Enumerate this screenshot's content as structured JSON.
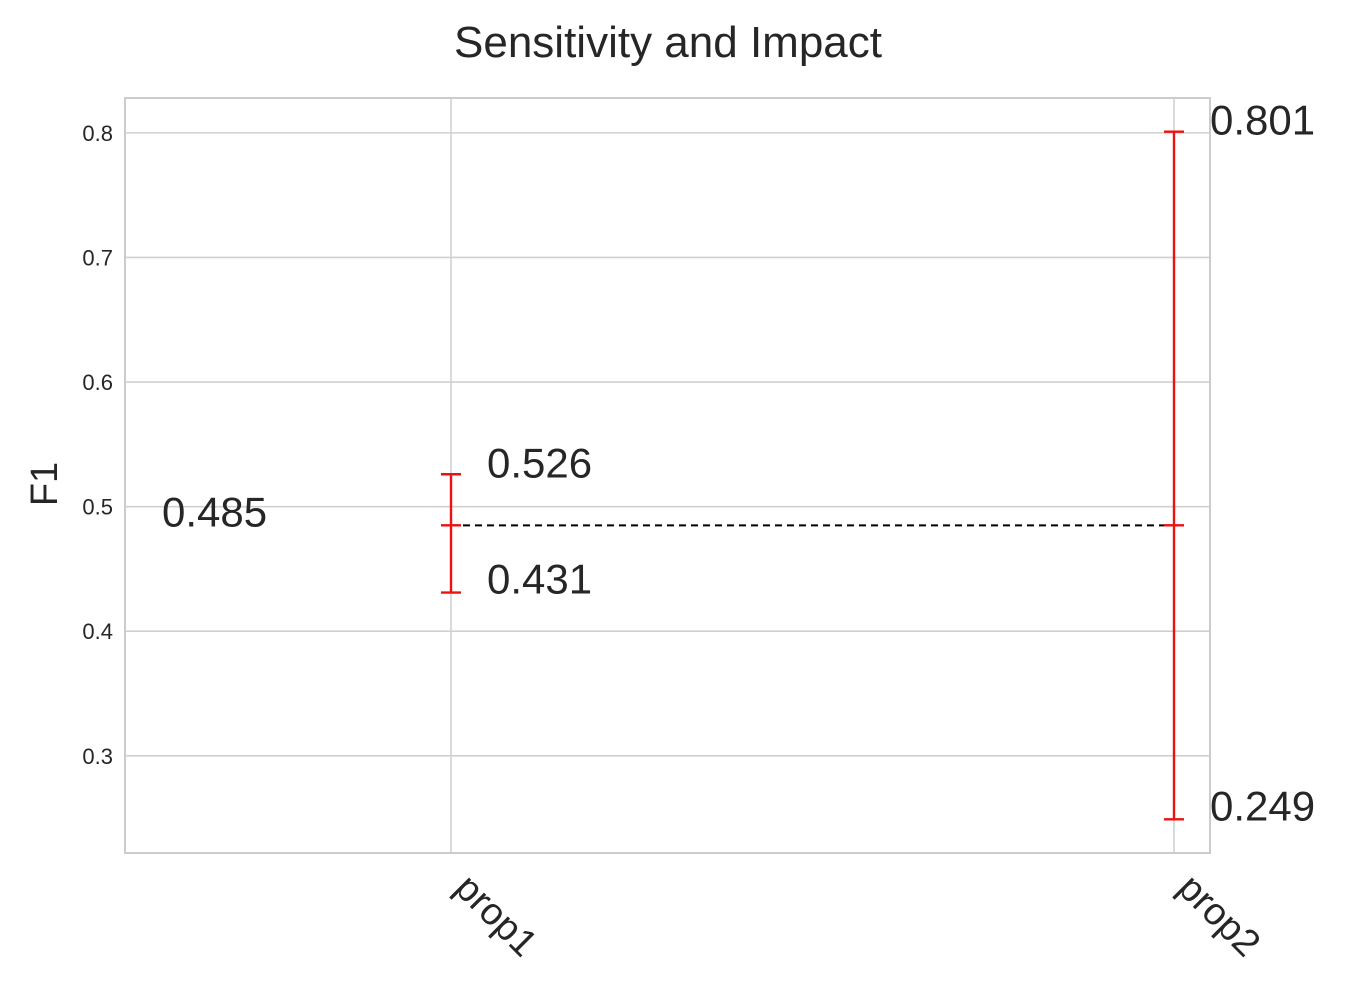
{
  "chart_data": {
    "type": "errorbar",
    "title": "Sensitivity and Impact",
    "ylabel": "F1",
    "xlabel": "",
    "categories": [
      "prop1",
      "prop2"
    ],
    "baseline": 0.485,
    "baseline_label": "0.485",
    "ranges": [
      {
        "category": "prop1",
        "low": 0.431,
        "high": 0.526,
        "low_label": "0.431",
        "high_label": "0.526"
      },
      {
        "category": "prop2",
        "low": 0.249,
        "high": 0.801,
        "low_label": "0.249",
        "high_label": "0.801"
      }
    ],
    "yticks": [
      0.3,
      0.4,
      0.5,
      0.6,
      0.7,
      0.8
    ],
    "ytick_labels": [
      "0.3",
      "0.4",
      "0.5",
      "0.6",
      "0.7",
      "0.8"
    ],
    "ylim": [
      0.222,
      0.828
    ],
    "grid": true,
    "colors": {
      "error_bar": "#ee1111",
      "baseline": "#000000",
      "grid": "#d0d0d0"
    }
  }
}
